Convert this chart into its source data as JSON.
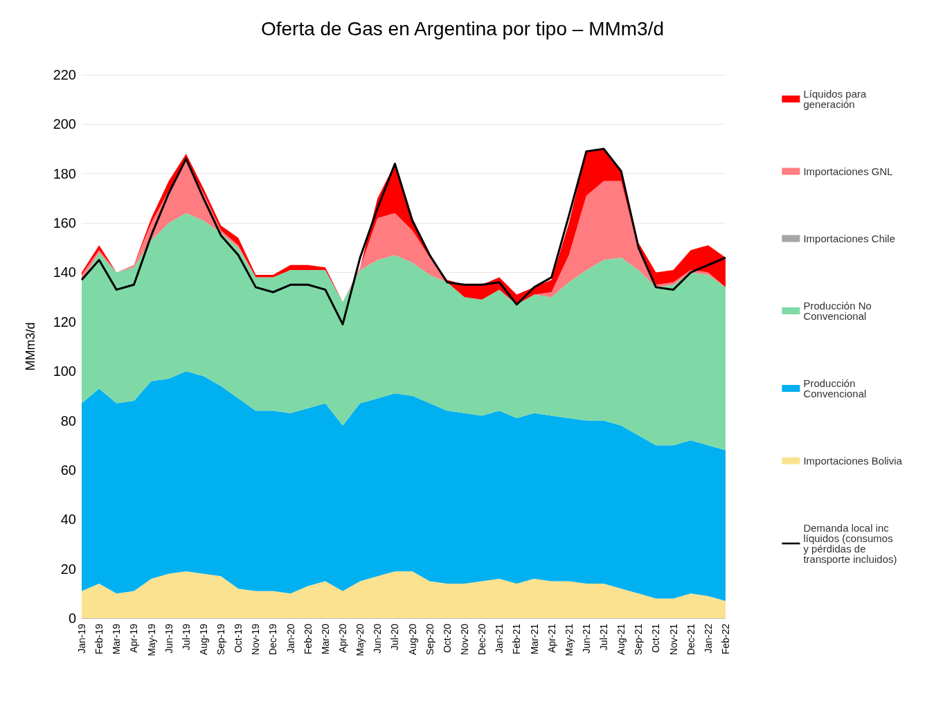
{
  "chart_data": {
    "type": "area",
    "title": "Oferta de Gas en Argentina por tipo – MMm3/d",
    "ylabel": "MMm3/d",
    "stacked": true,
    "legend": "right",
    "grid": "y",
    "categories": [
      "Jan-19",
      "Feb-19",
      "Mar-19",
      "Apr-19",
      "May-19",
      "Jun-19",
      "Jul-19",
      "Aug-19",
      "Sep-19",
      "Oct-19",
      "Nov-19",
      "Dec-19",
      "Jan-20",
      "Feb-20",
      "Mar-20",
      "Apr-20",
      "May-20",
      "Jun-20",
      "Jul-20",
      "Aug-20",
      "Sep-20",
      "Oct-20",
      "Nov-20",
      "Dec-20",
      "Jan-21",
      "Feb-21",
      "Mar-21",
      "Apr-21",
      "May-21",
      "Jun-21",
      "Jul-21",
      "Aug-21",
      "Sep-21",
      "Oct-21",
      "Nov-21",
      "Dec-21",
      "Jan-22",
      "Feb-22"
    ],
    "ylim": [
      0,
      220
    ],
    "yticks": [
      0,
      20,
      40,
      60,
      80,
      100,
      120,
      140,
      160,
      180,
      200,
      220
    ],
    "series": [
      {
        "name": "Importaciones Bolivia",
        "color": "#fbe290",
        "values": [
          11,
          14,
          10,
          11,
          16,
          18,
          19,
          18,
          17,
          12,
          11,
          11,
          10,
          13,
          15,
          11,
          15,
          17,
          19,
          19,
          15,
          14,
          14,
          15,
          16,
          14,
          16,
          15,
          15,
          14,
          14,
          12,
          10,
          8,
          8,
          10,
          9,
          7
        ]
      },
      {
        "name": "Producción Convencional",
        "color": "#00b0f0",
        "values": [
          76,
          79,
          77,
          77,
          80,
          79,
          81,
          80,
          77,
          77,
          73,
          73,
          73,
          72,
          72,
          67,
          72,
          72,
          72,
          71,
          72,
          70,
          69,
          67,
          68,
          67,
          67,
          67,
          66,
          66,
          66,
          66,
          64,
          62,
          62,
          62,
          61,
          61
        ]
      },
      {
        "name": "Producción No Convencional",
        "color": "#7fd9a6",
        "values": [
          50,
          55,
          53,
          54,
          57,
          63,
          64,
          63,
          62,
          61,
          54,
          54,
          58,
          56,
          54,
          50,
          54,
          56,
          56,
          54,
          52,
          52,
          47,
          47,
          49,
          46,
          48,
          48,
          55,
          61,
          65,
          68,
          67,
          64,
          65,
          68,
          69,
          66
        ]
      },
      {
        "name": "Importaciones Chile",
        "color": "#a6a6a6",
        "values": [
          null,
          null,
          null,
          null,
          null,
          null,
          null,
          null,
          null,
          null,
          null,
          null,
          null,
          null,
          null,
          null,
          null,
          null,
          null,
          null,
          null,
          null,
          null,
          null,
          null,
          null,
          null,
          null,
          null,
          null,
          null,
          null,
          null,
          null,
          null,
          null,
          null,
          null
        ]
      },
      {
        "name": "Importaciones GNL",
        "color": "#ff7c80",
        "values": [
          2,
          1,
          0,
          1,
          7,
          13,
          21,
          11,
          1,
          1,
          0,
          0,
          0,
          0,
          0,
          0,
          1,
          17,
          17,
          13,
          7,
          0,
          0,
          0,
          0,
          0,
          0,
          2,
          11,
          30,
          32,
          31,
          8,
          1,
          1,
          1,
          1,
          0
        ]
      },
      {
        "name": "Líquidos para generación",
        "color": "#ff0000",
        "values": [
          1,
          2,
          0,
          0,
          2,
          4,
          3,
          2,
          2,
          3,
          1,
          1,
          2,
          2,
          1,
          0,
          0,
          8,
          20,
          5,
          1,
          1,
          5,
          6,
          5,
          4,
          3,
          5,
          13,
          18,
          13,
          4,
          3,
          5,
          5,
          8,
          11,
          12
        ]
      },
      {
        "name": "Demanda local inc líquidos (consumos y pérdidas de transporte incluidos)",
        "type": "line",
        "color": "#000000",
        "values": [
          137,
          145,
          133,
          135,
          155,
          172,
          186,
          170,
          155,
          147,
          134,
          132,
          135,
          135,
          133,
          119,
          146,
          166,
          184,
          161,
          147,
          136,
          135,
          135,
          136,
          127,
          134,
          138,
          163,
          189,
          190,
          181,
          150,
          134,
          133,
          140,
          143,
          146
        ]
      }
    ]
  }
}
